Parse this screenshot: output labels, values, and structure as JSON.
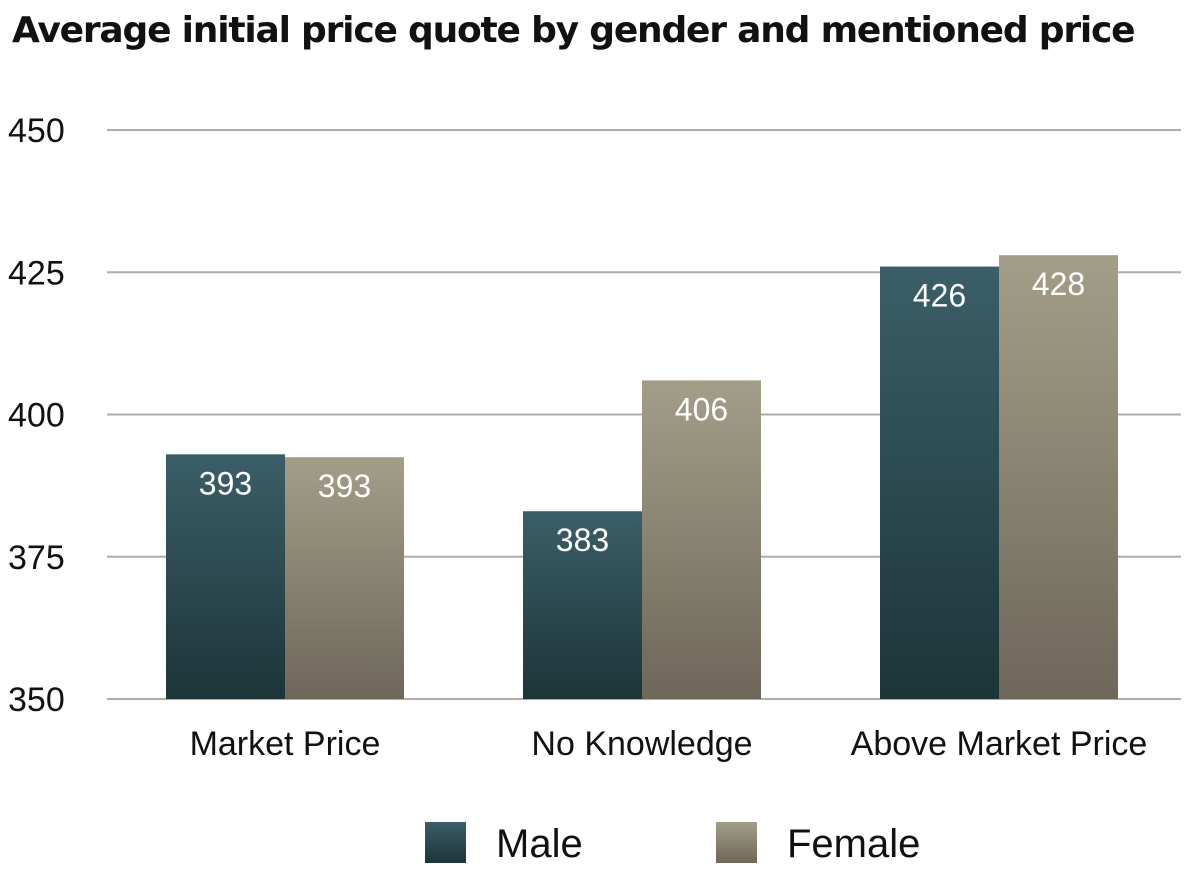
{
  "chart_data": {
    "type": "bar",
    "title": "Average initial price quote by gender and mentioned price",
    "xlabel": "",
    "ylabel": "",
    "ylim": [
      350,
      450
    ],
    "yticks": [
      350,
      375,
      400,
      425,
      450
    ],
    "grid": true,
    "legend_position": "bottom",
    "categories": [
      "Market Price",
      "No Knowledge",
      "Above Market Price"
    ],
    "series": [
      {
        "name": "Male",
        "values": [
          393,
          383,
          426
        ],
        "labels": [
          "393",
          "383",
          "426"
        ],
        "color_top": "#3b5e68",
        "color_bottom": "#1c3538"
      },
      {
        "name": "Female",
        "values": [
          392.5,
          406,
          428
        ],
        "labels": [
          "393",
          "406",
          "428"
        ],
        "color_top": "#a39e88",
        "color_bottom": "#6e675a"
      }
    ]
  }
}
